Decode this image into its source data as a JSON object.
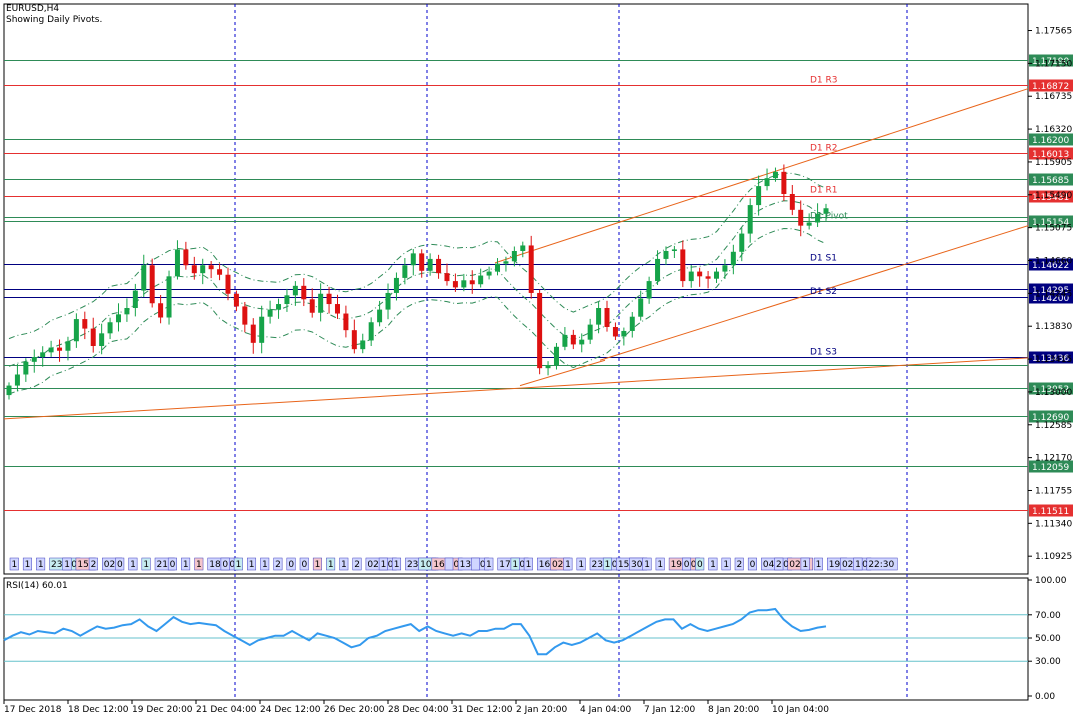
{
  "header": {
    "symbol": "EURUSD,H4",
    "note": "Showing Daily Pivots."
  },
  "colors": {
    "candle_up": "#16a349",
    "candle_down": "#dd1111",
    "grid": "#0000cc",
    "green_line": "#2e8b57",
    "red_line": "#e53030",
    "navy_line": "#000080",
    "trend": "#e8641a",
    "ma": "#2e8b57",
    "rsi": "#3399ee",
    "rsi_level": "#66c2cc"
  },
  "chart_data": [
    {
      "type": "candlestick",
      "symbol": "EURUSD",
      "timeframe": "H4",
      "ylim": [
        1.107,
        1.179
      ],
      "price_ticks": [
        "1.17565",
        "1.17150",
        "1.16735",
        "1.16320",
        "1.15905",
        "1.15490",
        "1.15075",
        "1.14660",
        "1.14245",
        "1.13830",
        "1.13415",
        "1.13000",
        "1.12585",
        "1.12170",
        "1.11755",
        "1.11340",
        "1.10925"
      ],
      "x_labels": [
        "17 Dec 2018",
        "18 Dec 12:00",
        "19 Dec 20:00",
        "21 Dec 04:00",
        "24 Dec 12:00",
        "26 Dec 20:00",
        "28 Dec 04:00",
        "31 Dec 12:00",
        "2 Jan 20:00",
        "4 Jan 04:00",
        "7 Jan 12:00",
        "8 Jan 20:00",
        "10 Jan 04:00"
      ],
      "close": [
        1.1308,
        1.1322,
        1.1338,
        1.1344,
        1.135,
        1.1356,
        1.1352,
        1.1364,
        1.1392,
        1.138,
        1.1358,
        1.1374,
        1.1388,
        1.1398,
        1.1406,
        1.1428,
        1.146,
        1.1412,
        1.1394,
        1.1446,
        1.148,
        1.146,
        1.145,
        1.146,
        1.1455,
        1.1448,
        1.1424,
        1.1408,
        1.1385,
        1.1362,
        1.1395,
        1.1404,
        1.1411,
        1.1422,
        1.1434,
        1.1417,
        1.14,
        1.1424,
        1.1411,
        1.1399,
        1.1378,
        1.1354,
        1.1365,
        1.1388,
        1.1404,
        1.1425,
        1.1444,
        1.146,
        1.1475,
        1.1453,
        1.1468,
        1.145,
        1.144,
        1.1432,
        1.1441,
        1.1436,
        1.1447,
        1.1452,
        1.1462,
        1.1465,
        1.1478,
        1.1485,
        1.1425,
        1.133,
        1.1334,
        1.1357,
        1.1372,
        1.136,
        1.1366,
        1.1385,
        1.1406,
        1.1382,
        1.137,
        1.1377,
        1.1395,
        1.1418,
        1.144,
        1.1468,
        1.1478,
        1.148,
        1.144,
        1.1452,
        1.1446,
        1.1443,
        1.1452,
        1.146,
        1.1477,
        1.15,
        1.1536,
        1.156,
        1.157,
        1.1578,
        1.155,
        1.153,
        1.151,
        1.1514,
        1.1525,
        1.1532
      ],
      "overlays": {
        "pivot_levels": [
          {
            "name": "D1 R3",
            "value": 1.16872,
            "price_label": "1.16872",
            "color": "red"
          },
          {
            "name": "D1 R2",
            "value": 1.16013,
            "price_label": "1.16013",
            "color": "red"
          },
          {
            "name": "D1 R1",
            "value": 1.15481,
            "price_label": "1.15481",
            "color": "red"
          },
          {
            "name": "D1 Pivot",
            "value": 1.15154,
            "price_label": "1.15154",
            "color": "green"
          },
          {
            "name": "D1 S1",
            "value": 1.14622,
            "price_label": "1.14622",
            "color": "navy"
          },
          {
            "name": "D1 S2",
            "value": 1.142,
            "price_label": "1.14200",
            "color": "navy"
          },
          {
            "name": "D1 S3",
            "value": 1.13436,
            "price_label": "1.13436",
            "color": "navy"
          }
        ],
        "other_levels": [
          {
            "value": 1.1719,
            "price_label": "1.17190",
            "color": "green"
          },
          {
            "value": 1.162,
            "price_label": "1.16200",
            "color": "green"
          },
          {
            "value": 1.15685,
            "price_label": "1.15685",
            "color": "green"
          },
          {
            "value": 1.1521,
            "price_label": "",
            "color": "green"
          },
          {
            "value": 1.14295,
            "price_label": "1.14295",
            "color": "navy"
          },
          {
            "value": 1.13345,
            "price_label": "",
            "color": "green"
          },
          {
            "value": 1.13052,
            "price_label": "1.13052",
            "color": "green"
          },
          {
            "value": 1.1269,
            "price_label": "1.12690",
            "color": "green"
          },
          {
            "value": 1.12059,
            "price_label": "1.12059",
            "color": "green"
          },
          {
            "value": 1.11511,
            "price_label": "1.11511",
            "color": "red"
          }
        ]
      },
      "time_markers": [
        "1",
        "1",
        "1",
        "23:00",
        "1",
        "15:",
        "2",
        "02:",
        "0",
        "1",
        "1",
        "21:",
        "0",
        "1",
        "1",
        "18:30",
        "0",
        "1",
        "1",
        "1",
        "2",
        "0",
        "0",
        "1",
        "1",
        "1",
        "2",
        "02:00",
        "1",
        "1",
        "23:30",
        "10:",
        "16:00",
        "",
        "13:10",
        "",
        "1",
        "17:30",
        "1",
        "1",
        "16:",
        "02:",
        "1",
        "1",
        "23:30",
        "1",
        "15:30",
        "30",
        "1",
        "1",
        "19:40",
        "0",
        "0",
        "1",
        "1",
        "2",
        "0",
        "04:00",
        "2",
        "02:0",
        "1",
        "1",
        "19:",
        "02:00",
        "1",
        "22:30"
      ]
    },
    {
      "type": "line",
      "title": "RSI(14) 60.01",
      "ylim": [
        0,
        100
      ],
      "y_ticks": [
        "100.00",
        "70.00",
        "50.00",
        "30.00",
        "0.00"
      ],
      "levels": [
        70,
        50,
        30
      ],
      "values": [
        48,
        52,
        55,
        53,
        56,
        55,
        54,
        58,
        56,
        52,
        56,
        60,
        58,
        59,
        61,
        62,
        66,
        60,
        56,
        62,
        68,
        64,
        62,
        63,
        62,
        61,
        56,
        52,
        48,
        44,
        48,
        50,
        52,
        52,
        56,
        52,
        48,
        54,
        52,
        50,
        46,
        42,
        44,
        50,
        52,
        56,
        58,
        60,
        62,
        56,
        60,
        56,
        54,
        52,
        54,
        52,
        56,
        56,
        58,
        58,
        62,
        62,
        52,
        36,
        36,
        42,
        46,
        44,
        46,
        50,
        54,
        48,
        46,
        48,
        52,
        56,
        60,
        64,
        66,
        66,
        58,
        62,
        58,
        56,
        58,
        60,
        62,
        66,
        72,
        74,
        74,
        75,
        66,
        60,
        56,
        57,
        59,
        60
      ]
    }
  ]
}
